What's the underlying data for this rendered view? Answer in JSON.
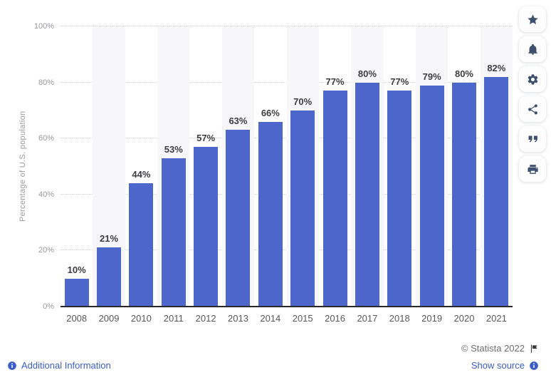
{
  "chart_data": {
    "type": "bar",
    "title": "",
    "xlabel": "",
    "ylabel": "Percentage of U.S. population",
    "categories": [
      "2008",
      "2009",
      "2010",
      "2011",
      "2012",
      "2013",
      "2014",
      "2015",
      "2016",
      "2017",
      "2018",
      "2019",
      "2020",
      "2021"
    ],
    "values": [
      10,
      21,
      44,
      53,
      57,
      63,
      66,
      70,
      77,
      80,
      77,
      79,
      80,
      82
    ],
    "value_labels": [
      "10%",
      "21%",
      "44%",
      "53%",
      "57%",
      "63%",
      "66%",
      "70%",
      "77%",
      "80%",
      "77%",
      "79%",
      "80%",
      "82%"
    ],
    "ylim": [
      0,
      100
    ],
    "yticks": [
      0,
      20,
      40,
      60,
      80,
      100
    ],
    "ytick_labels": [
      "0%",
      "20%",
      "40%",
      "60%",
      "80%",
      "100%"
    ],
    "grid": "horizontal-dotted",
    "legend": "none",
    "bar_color": "#4d66cb",
    "alt_band_color": "#f7f7f9"
  },
  "sidebar": {
    "buttons": [
      {
        "id": "favorite",
        "icon": "star-icon"
      },
      {
        "id": "notifications",
        "icon": "bell-icon"
      },
      {
        "id": "settings",
        "icon": "gear-icon"
      },
      {
        "id": "share",
        "icon": "share-icon"
      },
      {
        "id": "citation",
        "icon": "quote-icon"
      },
      {
        "id": "print",
        "icon": "printer-icon"
      }
    ]
  },
  "footer": {
    "additional_information_label": "Additional Information",
    "copyright_text": "© Statista 2022",
    "show_source_label": "Show source"
  },
  "colors": {
    "bar": "#4d66cb",
    "link_blue": "#3a5dc9",
    "icon_navy": "#3e506e",
    "axis_line": "#29292e",
    "tick_gray": "#98989d",
    "value_label": "#3d3d41"
  }
}
